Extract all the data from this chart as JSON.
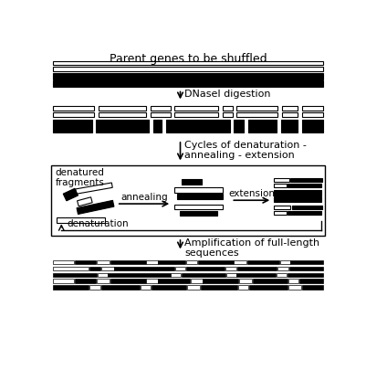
{
  "bg_color": "#ffffff",
  "fig_width": 4.02,
  "fig_height": 4.28,
  "dpi": 100,
  "title": "Parent genes to be shuffled",
  "label_dnase": "DNaseI digestion",
  "label_cycles": "Cycles of denaturation -\nannealing - extension",
  "label_amp": "Amplification of full-length\nsequences",
  "label_denatured": "denatured\nfragments",
  "label_annealing": "annealing",
  "label_extension": "extension",
  "label_denaturation": "denaturation"
}
